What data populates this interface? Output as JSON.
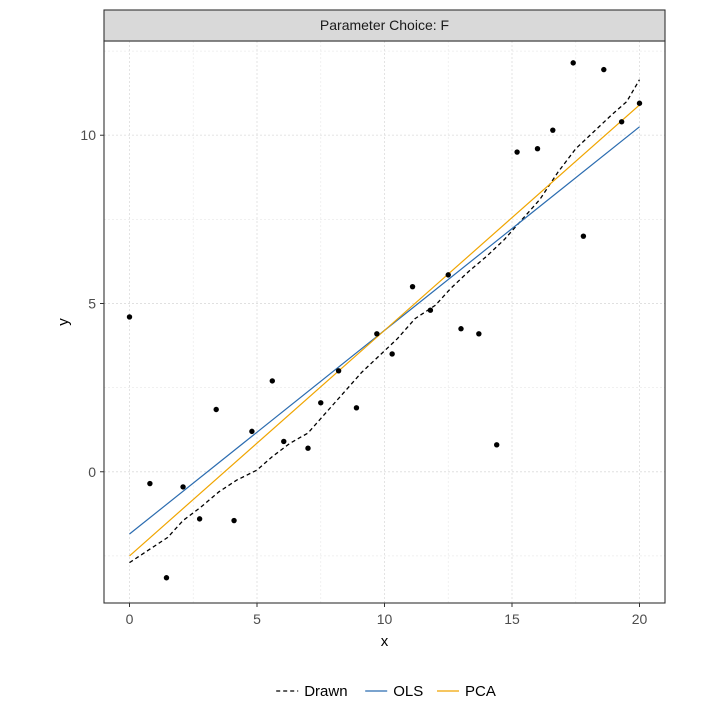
{
  "chart_data": {
    "type": "scatter",
    "facet_title": "Parameter Choice: F",
    "xlabel": "x",
    "ylabel": "y",
    "xlim": [
      -1,
      21
    ],
    "ylim": [
      -3.9,
      12.8
    ],
    "xticks": [
      0,
      5,
      10,
      15,
      20
    ],
    "yticks": [
      0,
      5,
      10
    ],
    "grid": true,
    "legend_position": "bottom",
    "points": [
      {
        "x": 0.0,
        "y": 4.6
      },
      {
        "x": 0.8,
        "y": -0.35
      },
      {
        "x": 1.45,
        "y": -3.15
      },
      {
        "x": 2.1,
        "y": -0.45
      },
      {
        "x": 2.75,
        "y": -1.4
      },
      {
        "x": 3.4,
        "y": 1.85
      },
      {
        "x": 4.1,
        "y": -1.45
      },
      {
        "x": 4.8,
        "y": 1.2
      },
      {
        "x": 5.6,
        "y": 2.7
      },
      {
        "x": 6.05,
        "y": 0.9
      },
      {
        "x": 7.0,
        "y": 0.7
      },
      {
        "x": 7.5,
        "y": 2.05
      },
      {
        "x": 8.2,
        "y": 3.0
      },
      {
        "x": 8.9,
        "y": 1.9
      },
      {
        "x": 9.7,
        "y": 4.1
      },
      {
        "x": 10.3,
        "y": 3.5
      },
      {
        "x": 11.1,
        "y": 5.5
      },
      {
        "x": 11.8,
        "y": 4.8
      },
      {
        "x": 12.5,
        "y": 5.85
      },
      {
        "x": 13.0,
        "y": 4.25
      },
      {
        "x": 13.7,
        "y": 4.1
      },
      {
        "x": 14.4,
        "y": 0.8
      },
      {
        "x": 15.2,
        "y": 9.5
      },
      {
        "x": 16.0,
        "y": 9.6
      },
      {
        "x": 16.6,
        "y": 10.15
      },
      {
        "x": 17.4,
        "y": 12.15
      },
      {
        "x": 17.8,
        "y": 7.0
      },
      {
        "x": 18.6,
        "y": 11.95
      },
      {
        "x": 19.3,
        "y": 10.4
      },
      {
        "x": 20.0,
        "y": 10.95
      }
    ],
    "series": [
      {
        "name": "Drawn",
        "style": "dashed",
        "color": "#000000",
        "x": [
          0,
          0.7,
          1.5,
          2.1,
          2.8,
          3.5,
          4.2,
          5.0,
          5.6,
          6.3,
          7.0,
          7.7,
          8.4,
          9.1,
          9.8,
          10.5,
          11.2,
          12.0,
          12.6,
          13.3,
          14.0,
          14.7,
          15.4,
          16.1,
          16.8,
          17.5,
          18.2,
          18.9,
          19.5,
          20.0
        ],
        "y": [
          -2.7,
          -2.35,
          -1.95,
          -1.45,
          -1.05,
          -0.6,
          -0.25,
          0.05,
          0.45,
          0.85,
          1.15,
          1.75,
          2.35,
          2.95,
          3.45,
          3.95,
          4.55,
          4.95,
          5.45,
          5.95,
          6.4,
          6.9,
          7.5,
          8.1,
          8.9,
          9.6,
          10.1,
          10.6,
          11.0,
          11.65
        ]
      },
      {
        "name": "OLS",
        "style": "solid",
        "color": "#2b6cb0",
        "x": [
          0,
          20
        ],
        "y": [
          -1.85,
          10.25
        ]
      },
      {
        "name": "PCA",
        "style": "solid",
        "color": "#f0a500",
        "x": [
          0,
          20
        ],
        "y": [
          -2.5,
          10.9
        ]
      }
    ]
  }
}
